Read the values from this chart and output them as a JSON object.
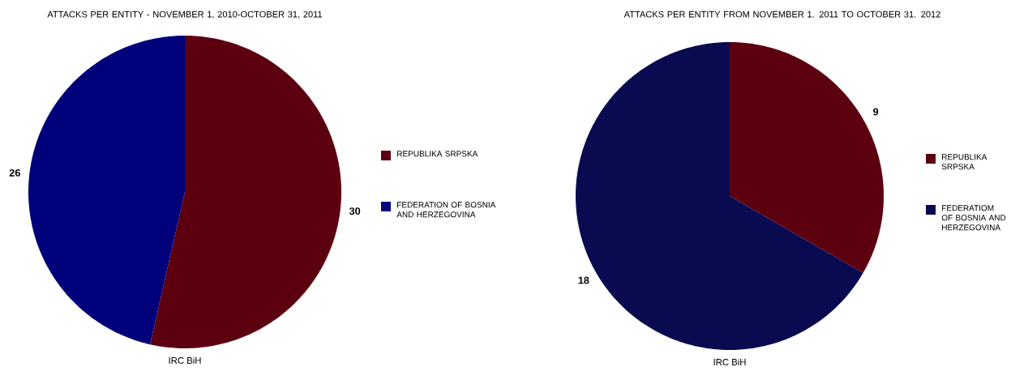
{
  "chart_data": [
    {
      "type": "pie",
      "title": "ATTACKS PER ENTITY - NOVEMBER 1, 2010-OCTOBER 31, 2011",
      "categories": [
        "REPUBLIKA SRPSKA",
        "FEDERATION OF BOSNIA AND HERZEGOVINA"
      ],
      "values": [
        30,
        26
      ],
      "colors": [
        "#5c0010",
        "#00007a"
      ],
      "data_labels": true,
      "legend": "right",
      "annotations": [
        "IRC BiH"
      ]
    },
    {
      "type": "pie",
      "title": "ATTACKS PER ENTITY FROM NOVEMBER 1. 2011 TO OCTOBER 31. 2012",
      "categories": [
        "REPUBLIKA SRPSKA",
        "FEDERATIOM OF BOSNIA AND HERZEGOVINA"
      ],
      "values": [
        9,
        18
      ],
      "colors": [
        "#5c0010",
        "#0a0a50"
      ],
      "data_labels": true,
      "legend": "right",
      "annotations": [
        "IRC BiH"
      ]
    }
  ]
}
